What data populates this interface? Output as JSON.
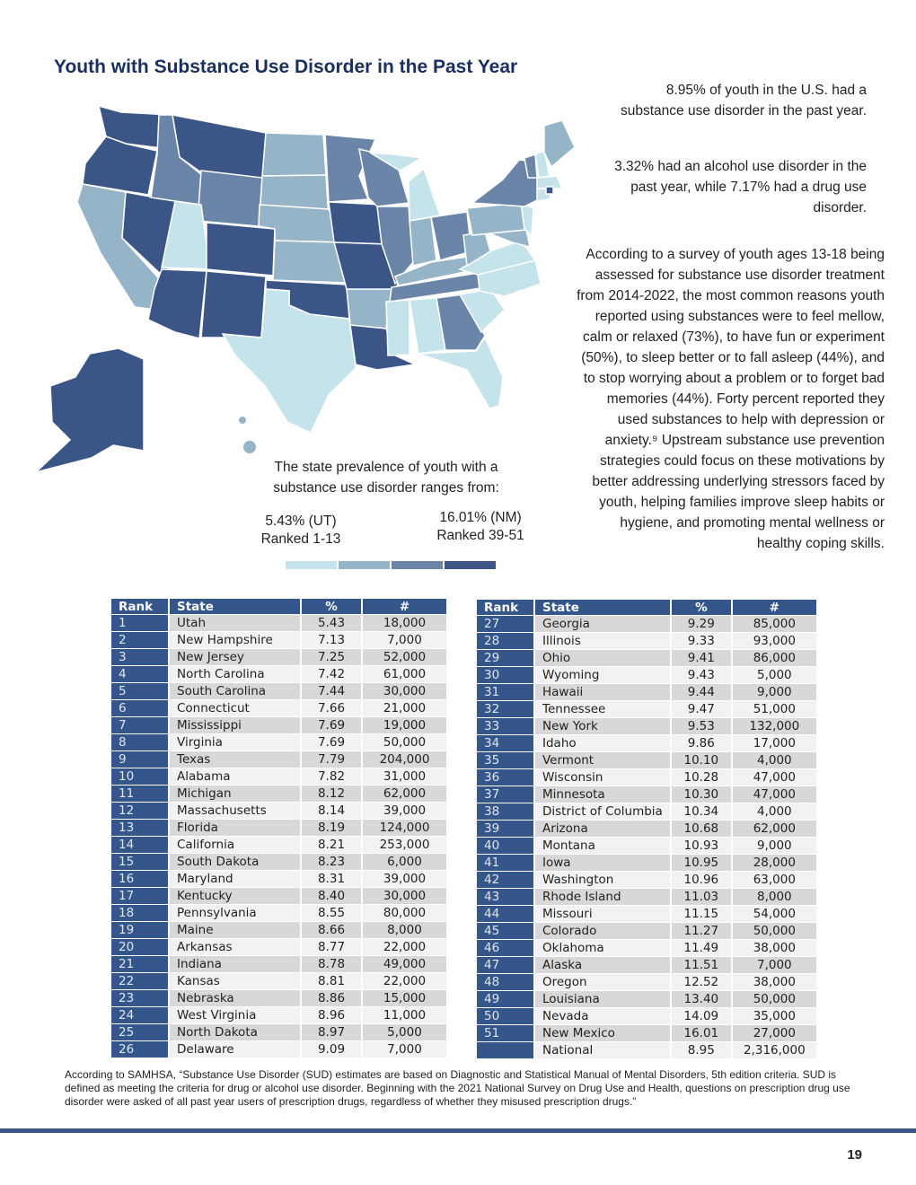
{
  "title": "Youth with Substance Use Disorder in the Past Year",
  "side": {
    "p1": "8.95% of youth in the U.S. had a substance use disorder in the past year.",
    "p2": "3.32% had an alcohol use disorder in the past year, while 7.17% had a drug use disorder.",
    "p3": "According to a survey of youth ages 13-18 being assessed for substance use disorder treatment from 2014-2022, the most common reasons youth reported using substances were to feel mellow, calm or relaxed (73%), to have fun or experiment (50%), to sleep better or to fall asleep (44%), and to stop worrying about a problem or to forget bad memories (44%). Forty percent reported they used substances to help with depression or anxiety.⁹ Upstream substance use prevention strategies could focus on these motivations by better addressing underlying stressors faced by youth, helping families improve sleep habits or hygiene, and promoting mental wellness or healthy coping skills."
  },
  "range": {
    "intro": "The state prevalence of youth with a substance use disorder ranges from:",
    "low_value": "5.43% (UT)",
    "low_rank": "Ranked 1-13",
    "high_value": "16.01% (NM)",
    "high_rank": "Ranked 39-51"
  },
  "colors": {
    "q1": "#c4e3ea",
    "q2": "#96b4c8",
    "q3": "#6a85a8",
    "q4": "#3b5587"
  },
  "table_headers": [
    "Rank",
    "State",
    "%",
    "#"
  ],
  "table_left": [
    [
      "1",
      "Utah",
      "5.43",
      "18,000"
    ],
    [
      "2",
      "New Hampshire",
      "7.13",
      "7,000"
    ],
    [
      "3",
      "New Jersey",
      "7.25",
      "52,000"
    ],
    [
      "4",
      "North Carolina",
      "7.42",
      "61,000"
    ],
    [
      "5",
      "South Carolina",
      "7.44",
      "30,000"
    ],
    [
      "6",
      "Connecticut",
      "7.66",
      "21,000"
    ],
    [
      "7",
      "Mississippi",
      "7.69",
      "19,000"
    ],
    [
      "8",
      "Virginia",
      "7.69",
      "50,000"
    ],
    [
      "9",
      "Texas",
      "7.79",
      "204,000"
    ],
    [
      "10",
      "Alabama",
      "7.82",
      "31,000"
    ],
    [
      "11",
      "Michigan",
      "8.12",
      "62,000"
    ],
    [
      "12",
      "Massachusetts",
      "8.14",
      "39,000"
    ],
    [
      "13",
      "Florida",
      "8.19",
      "124,000"
    ],
    [
      "14",
      "California",
      "8.21",
      "253,000"
    ],
    [
      "15",
      "South Dakota",
      "8.23",
      "6,000"
    ],
    [
      "16",
      "Maryland",
      "8.31",
      "39,000"
    ],
    [
      "17",
      "Kentucky",
      "8.40",
      "30,000"
    ],
    [
      "18",
      "Pennsylvania",
      "8.55",
      "80,000"
    ],
    [
      "19",
      "Maine",
      "8.66",
      "8,000"
    ],
    [
      "20",
      "Arkansas",
      "8.77",
      "22,000"
    ],
    [
      "21",
      "Indiana",
      "8.78",
      "49,000"
    ],
    [
      "22",
      "Kansas",
      "8.81",
      "22,000"
    ],
    [
      "23",
      "Nebraska",
      "8.86",
      "15,000"
    ],
    [
      "24",
      "West Virginia",
      "8.96",
      "11,000"
    ],
    [
      "25",
      "North Dakota",
      "8.97",
      "5,000"
    ],
    [
      "26",
      "Delaware",
      "9.09",
      "7,000"
    ]
  ],
  "table_right": [
    [
      "27",
      "Georgia",
      "9.29",
      "85,000"
    ],
    [
      "28",
      "Illinois",
      "9.33",
      "93,000"
    ],
    [
      "29",
      "Ohio",
      "9.41",
      "86,000"
    ],
    [
      "30",
      "Wyoming",
      "9.43",
      "5,000"
    ],
    [
      "31",
      "Hawaii",
      "9.44",
      "9,000"
    ],
    [
      "32",
      "Tennessee",
      "9.47",
      "51,000"
    ],
    [
      "33",
      "New York",
      "9.53",
      "132,000"
    ],
    [
      "34",
      "Idaho",
      "9.86",
      "17,000"
    ],
    [
      "35",
      "Vermont",
      "10.10",
      "4,000"
    ],
    [
      "36",
      "Wisconsin",
      "10.28",
      "47,000"
    ],
    [
      "37",
      "Minnesota",
      "10.30",
      "47,000"
    ],
    [
      "38",
      "District of Columbia",
      "10.34",
      "4,000"
    ],
    [
      "39",
      "Arizona",
      "10.68",
      "62,000"
    ],
    [
      "40",
      "Montana",
      "10.93",
      "9,000"
    ],
    [
      "41",
      "Iowa",
      "10.95",
      "28,000"
    ],
    [
      "42",
      "Washington",
      "10.96",
      "63,000"
    ],
    [
      "43",
      "Rhode Island",
      "11.03",
      "8,000"
    ],
    [
      "44",
      "Missouri",
      "11.15",
      "54,000"
    ],
    [
      "45",
      "Colorado",
      "11.27",
      "50,000"
    ],
    [
      "46",
      "Oklahoma",
      "11.49",
      "38,000"
    ],
    [
      "47",
      "Alaska",
      "11.51",
      "7,000"
    ],
    [
      "48",
      "Oregon",
      "12.52",
      "38,000"
    ],
    [
      "49",
      "Louisiana",
      "13.40",
      "50,000"
    ],
    [
      "50",
      "Nevada",
      "14.09",
      "35,000"
    ],
    [
      "51",
      "New Mexico",
      "16.01",
      "27,000"
    ],
    [
      "",
      "National",
      "8.95",
      "2,316,000"
    ]
  ],
  "footnote": "According to SAMHSA, “Substance Use Disorder (SUD) estimates are based on Diagnostic and Statistical Manual of Mental Disorders, 5th edition criteria. SUD is defined as meeting the criteria for drug or alcohol use disorder. Beginning with the 2021 National Survey on Drug Use and Health, questions on prescription drug use disorder were asked of all past year users of prescription drugs, regardless of whether they misused prescription drugs.”",
  "page_number": "19"
}
